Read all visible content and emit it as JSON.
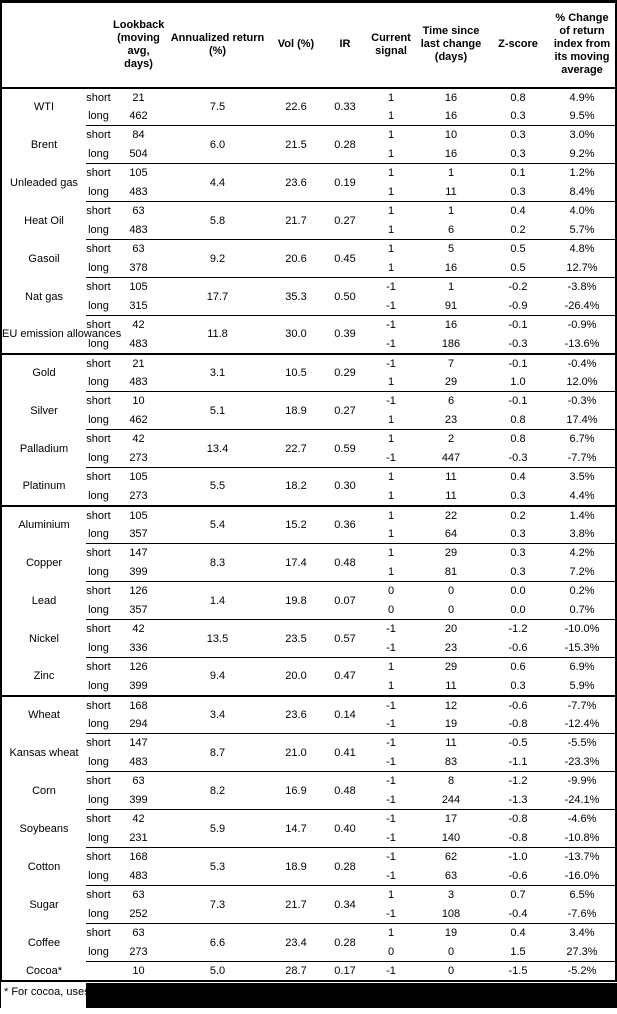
{
  "colors": {
    "text": "#000000",
    "background": "#ffffff",
    "rule": "#000000",
    "redaction": "#000000"
  },
  "footnote": "* For cocoa, uses o",
  "table": {
    "columns": [
      {
        "key": "lookback",
        "label": "Lookback (moving avg, days)"
      },
      {
        "key": "annualized_return",
        "label": "Annualized return (%)"
      },
      {
        "key": "vol",
        "label": "Vol (%)"
      },
      {
        "key": "ir",
        "label": "IR"
      },
      {
        "key": "current_signal",
        "label": "Current signal"
      },
      {
        "key": "time_since_change",
        "label": "Time since last change (days)"
      },
      {
        "key": "zscore",
        "label": "Z-score"
      },
      {
        "key": "pct_change",
        "label": "% Change of return index from its moving average"
      }
    ],
    "sections": [
      {
        "name": "energy",
        "commodities": [
          {
            "name": "WTI",
            "ann": "7.5",
            "vol": "22.6",
            "ir": "0.33",
            "rows": [
              {
                "side": "short",
                "lookback": "21",
                "signal": "1",
                "time": "16",
                "z": "0.8",
                "pct": "4.9%"
              },
              {
                "side": "long",
                "lookback": "462",
                "signal": "1",
                "time": "16",
                "z": "0.3",
                "pct": "9.5%"
              }
            ]
          },
          {
            "name": "Brent",
            "ann": "6.0",
            "vol": "21.5",
            "ir": "0.28",
            "rows": [
              {
                "side": "short",
                "lookback": "84",
                "signal": "1",
                "time": "10",
                "z": "0.3",
                "pct": "3.0%"
              },
              {
                "side": "long",
                "lookback": "504",
                "signal": "1",
                "time": "16",
                "z": "0.3",
                "pct": "9.2%"
              }
            ]
          },
          {
            "name": "Unleaded gas",
            "ann": "4.4",
            "vol": "23.6",
            "ir": "0.19",
            "rows": [
              {
                "side": "short",
                "lookback": "105",
                "signal": "1",
                "time": "1",
                "z": "0.1",
                "pct": "1.2%"
              },
              {
                "side": "long",
                "lookback": "483",
                "signal": "1",
                "time": "11",
                "z": "0.3",
                "pct": "8.4%"
              }
            ]
          },
          {
            "name": "Heat Oil",
            "ann": "5.8",
            "vol": "21.7",
            "ir": "0.27",
            "rows": [
              {
                "side": "short",
                "lookback": "63",
                "signal": "1",
                "time": "1",
                "z": "0.4",
                "pct": "4.0%"
              },
              {
                "side": "long",
                "lookback": "483",
                "signal": "1",
                "time": "6",
                "z": "0.2",
                "pct": "5.7%"
              }
            ]
          },
          {
            "name": "Gasoil",
            "ann": "9.2",
            "vol": "20.6",
            "ir": "0.45",
            "rows": [
              {
                "side": "short",
                "lookback": "63",
                "signal": "1",
                "time": "5",
                "z": "0.5",
                "pct": "4.8%"
              },
              {
                "side": "long",
                "lookback": "378",
                "signal": "1",
                "time": "16",
                "z": "0.5",
                "pct": "12.7%"
              }
            ]
          },
          {
            "name": "Nat gas",
            "ann": "17.7",
            "vol": "35.3",
            "ir": "0.50",
            "rows": [
              {
                "side": "short",
                "lookback": "105",
                "signal": "-1",
                "time": "1",
                "z": "-0.2",
                "pct": "-3.8%"
              },
              {
                "side": "long",
                "lookback": "315",
                "signal": "-1",
                "time": "91",
                "z": "-0.9",
                "pct": "-26.4%"
              }
            ]
          },
          {
            "name": "EU emission allowances",
            "ann": "11.8",
            "vol": "30.0",
            "ir": "0.39",
            "rows": [
              {
                "side": "short",
                "lookback": "42",
                "signal": "-1",
                "time": "16",
                "z": "-0.1",
                "pct": "-0.9%"
              },
              {
                "side": "long",
                "lookback": "483",
                "signal": "-1",
                "time": "186",
                "z": "-0.3",
                "pct": "-13.6%"
              }
            ]
          }
        ]
      },
      {
        "name": "precious-metals",
        "commodities": [
          {
            "name": "Gold",
            "ann": "3.1",
            "vol": "10.5",
            "ir": "0.29",
            "rows": [
              {
                "side": "short",
                "lookback": "21",
                "signal": "-1",
                "time": "7",
                "z": "-0.1",
                "pct": "-0.4%"
              },
              {
                "side": "long",
                "lookback": "483",
                "signal": "1",
                "time": "29",
                "z": "1.0",
                "pct": "12.0%"
              }
            ]
          },
          {
            "name": "Silver",
            "ann": "5.1",
            "vol": "18.9",
            "ir": "0.27",
            "rows": [
              {
                "side": "short",
                "lookback": "10",
                "signal": "-1",
                "time": "6",
                "z": "-0.1",
                "pct": "-0.3%"
              },
              {
                "side": "long",
                "lookback": "462",
                "signal": "1",
                "time": "23",
                "z": "0.8",
                "pct": "17.4%"
              }
            ]
          },
          {
            "name": "Palladium",
            "ann": "13.4",
            "vol": "22.7",
            "ir": "0.59",
            "rows": [
              {
                "side": "short",
                "lookback": "42",
                "signal": "1",
                "time": "2",
                "z": "0.8",
                "pct": "6.7%"
              },
              {
                "side": "long",
                "lookback": "273",
                "signal": "-1",
                "time": "447",
                "z": "-0.3",
                "pct": "-7.7%"
              }
            ]
          },
          {
            "name": "Platinum",
            "ann": "5.5",
            "vol": "18.2",
            "ir": "0.30",
            "rows": [
              {
                "side": "short",
                "lookback": "105",
                "signal": "1",
                "time": "11",
                "z": "0.4",
                "pct": "3.5%"
              },
              {
                "side": "long",
                "lookback": "273",
                "signal": "1",
                "time": "11",
                "z": "0.3",
                "pct": "4.4%"
              }
            ]
          }
        ]
      },
      {
        "name": "base-metals",
        "commodities": [
          {
            "name": "Aluminium",
            "ann": "5.4",
            "vol": "15.2",
            "ir": "0.36",
            "rows": [
              {
                "side": "short",
                "lookback": "105",
                "signal": "1",
                "time": "22",
                "z": "0.2",
                "pct": "1.4%"
              },
              {
                "side": "long",
                "lookback": "357",
                "signal": "1",
                "time": "64",
                "z": "0.3",
                "pct": "3.8%"
              }
            ]
          },
          {
            "name": "Copper",
            "ann": "8.3",
            "vol": "17.4",
            "ir": "0.48",
            "rows": [
              {
                "side": "short",
                "lookback": "147",
                "signal": "1",
                "time": "29",
                "z": "0.3",
                "pct": "4.2%"
              },
              {
                "side": "long",
                "lookback": "399",
                "signal": "1",
                "time": "81",
                "z": "0.3",
                "pct": "7.2%"
              }
            ]
          },
          {
            "name": "Lead",
            "ann": "1.4",
            "vol": "19.8",
            "ir": "0.07",
            "rows": [
              {
                "side": "short",
                "lookback": "126",
                "signal": "0",
                "time": "0",
                "z": "0.0",
                "pct": "0.2%"
              },
              {
                "side": "long",
                "lookback": "357",
                "signal": "0",
                "time": "0",
                "z": "0.0",
                "pct": "0.7%"
              }
            ]
          },
          {
            "name": "Nickel",
            "ann": "13.5",
            "vol": "23.5",
            "ir": "0.57",
            "rows": [
              {
                "side": "short",
                "lookback": "42",
                "signal": "-1",
                "time": "20",
                "z": "-1.2",
                "pct": "-10.0%"
              },
              {
                "side": "long",
                "lookback": "336",
                "signal": "-1",
                "time": "23",
                "z": "-0.6",
                "pct": "-15.3%"
              }
            ]
          },
          {
            "name": "Zinc",
            "ann": "9.4",
            "vol": "20.0",
            "ir": "0.47",
            "rows": [
              {
                "side": "short",
                "lookback": "126",
                "signal": "1",
                "time": "29",
                "z": "0.6",
                "pct": "6.9%"
              },
              {
                "side": "long",
                "lookback": "399",
                "signal": "1",
                "time": "11",
                "z": "0.3",
                "pct": "5.9%"
              }
            ]
          }
        ]
      },
      {
        "name": "agriculture",
        "commodities": [
          {
            "name": "Wheat",
            "ann": "3.4",
            "vol": "23.6",
            "ir": "0.14",
            "rows": [
              {
                "side": "short",
                "lookback": "168",
                "signal": "-1",
                "time": "12",
                "z": "-0.6",
                "pct": "-7.7%"
              },
              {
                "side": "long",
                "lookback": "294",
                "signal": "-1",
                "time": "19",
                "z": "-0.8",
                "pct": "-12.4%"
              }
            ]
          },
          {
            "name": "Kansas wheat",
            "ann": "8.7",
            "vol": "21.0",
            "ir": "0.41",
            "rows": [
              {
                "side": "short",
                "lookback": "147",
                "signal": "-1",
                "time": "11",
                "z": "-0.5",
                "pct": "-5.5%"
              },
              {
                "side": "long",
                "lookback": "483",
                "signal": "-1",
                "time": "83",
                "z": "-1.1",
                "pct": "-23.3%"
              }
            ]
          },
          {
            "name": "Corn",
            "ann": "8.2",
            "vol": "16.9",
            "ir": "0.48",
            "rows": [
              {
                "side": "short",
                "lookback": "63",
                "signal": "-1",
                "time": "8",
                "z": "-1.2",
                "pct": "-9.9%"
              },
              {
                "side": "long",
                "lookback": "399",
                "signal": "-1",
                "time": "244",
                "z": "-1.3",
                "pct": "-24.1%"
              }
            ]
          },
          {
            "name": "Soybeans",
            "ann": "5.9",
            "vol": "14.7",
            "ir": "0.40",
            "rows": [
              {
                "side": "short",
                "lookback": "42",
                "signal": "-1",
                "time": "17",
                "z": "-0.8",
                "pct": "-4.6%"
              },
              {
                "side": "long",
                "lookback": "231",
                "signal": "-1",
                "time": "140",
                "z": "-0.8",
                "pct": "-10.8%"
              }
            ]
          },
          {
            "name": "Cotton",
            "ann": "5.3",
            "vol": "18.9",
            "ir": "0.28",
            "rows": [
              {
                "side": "short",
                "lookback": "168",
                "signal": "-1",
                "time": "62",
                "z": "-1.0",
                "pct": "-13.7%"
              },
              {
                "side": "long",
                "lookback": "483",
                "signal": "-1",
                "time": "63",
                "z": "-0.6",
                "pct": "-16.0%"
              }
            ]
          },
          {
            "name": "Sugar",
            "ann": "7.3",
            "vol": "21.7",
            "ir": "0.34",
            "rows": [
              {
                "side": "short",
                "lookback": "63",
                "signal": "1",
                "time": "3",
                "z": "0.7",
                "pct": "6.5%"
              },
              {
                "side": "long",
                "lookback": "252",
                "signal": "-1",
                "time": "108",
                "z": "-0.4",
                "pct": "-7.6%"
              }
            ]
          },
          {
            "name": "Coffee",
            "ann": "6.6",
            "vol": "23.4",
            "ir": "0.28",
            "rows": [
              {
                "side": "short",
                "lookback": "63",
                "signal": "1",
                "time": "19",
                "z": "0.4",
                "pct": "3.4%"
              },
              {
                "side": "long",
                "lookback": "273",
                "signal": "0",
                "time": "0",
                "z": "1.5",
                "pct": "27.3%"
              }
            ]
          },
          {
            "name": "Cocoa*",
            "ann": "5.0",
            "vol": "28.7",
            "ir": "0.17",
            "rows": [
              {
                "side": "",
                "lookback": "10",
                "signal": "-1",
                "time": "0",
                "z": "-1.5",
                "pct": "-5.2%"
              }
            ]
          }
        ]
      }
    ]
  }
}
